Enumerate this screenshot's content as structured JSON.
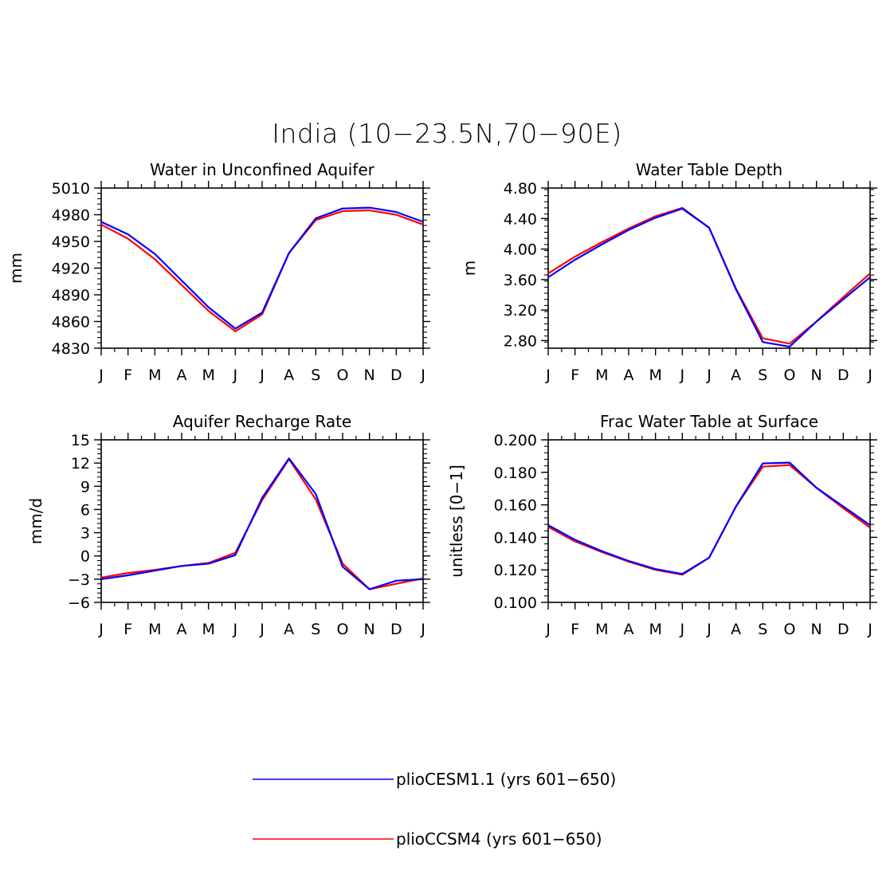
{
  "figure": {
    "title": "India (10−23.5N,70−90E)"
  },
  "legend": {
    "items": [
      {
        "label": "plioCESM1.1 (yrs 601−650)",
        "color": "#0000ff"
      },
      {
        "label": "plioCCSM4 (yrs 601−650)",
        "color": "#ff0000"
      }
    ]
  },
  "chart_data": [
    {
      "type": "line",
      "title": "Water in Unconfined Aquifer",
      "ylabel": "mm",
      "xlabel": "",
      "categories": [
        "J",
        "F",
        "M",
        "A",
        "M",
        "J",
        "J",
        "A",
        "S",
        "O",
        "N",
        "D",
        "J"
      ],
      "ylim": [
        4830,
        5010
      ],
      "yticks": [
        4830,
        4860,
        4890,
        4920,
        4950,
        4980,
        5010
      ],
      "ytick_labels": [
        "4830",
        "4860",
        "4890",
        "4920",
        "4950",
        "4980",
        "5010"
      ],
      "series": [
        {
          "name": "plioCESM1.1 (yrs 601−650)",
          "color": "#0000ff",
          "values": [
            4972,
            4958,
            4936,
            4906,
            4876,
            4852,
            4870,
            4937,
            4976,
            4987,
            4988,
            4983,
            4972
          ]
        },
        {
          "name": "plioCCSM4 (yrs 601−650)",
          "color": "#ff0000",
          "values": [
            4969,
            4953,
            4930,
            4901,
            4872,
            4849,
            4868,
            4937,
            4974,
            4984,
            4985,
            4980,
            4969
          ]
        }
      ]
    },
    {
      "type": "line",
      "title": "Water Table Depth",
      "ylabel": "m",
      "xlabel": "",
      "categories": [
        "J",
        "F",
        "M",
        "A",
        "M",
        "J",
        "J",
        "A",
        "S",
        "O",
        "N",
        "D",
        "J"
      ],
      "ylim": [
        2.7,
        4.8
      ],
      "yticks": [
        2.8,
        3.2,
        3.6,
        4.0,
        4.4,
        4.8
      ],
      "ytick_labels": [
        "2.80",
        "3.20",
        "3.60",
        "4.00",
        "4.40",
        "4.80"
      ],
      "series": [
        {
          "name": "plioCESM1.1 (yrs 601−650)",
          "color": "#0000ff",
          "values": [
            3.63,
            3.86,
            4.06,
            4.25,
            4.41,
            4.53,
            4.28,
            3.47,
            2.78,
            2.72,
            3.05,
            3.34,
            3.63
          ]
        },
        {
          "name": "plioCCSM4 (yrs 601−650)",
          "color": "#ff0000",
          "values": [
            3.68,
            3.9,
            4.09,
            4.27,
            4.43,
            4.54,
            4.28,
            3.48,
            2.83,
            2.76,
            3.05,
            3.37,
            3.68
          ]
        }
      ]
    },
    {
      "type": "line",
      "title": "Aquifer Recharge Rate",
      "ylabel": "mm/d",
      "xlabel": "",
      "categories": [
        "J",
        "F",
        "M",
        "A",
        "M",
        "J",
        "J",
        "A",
        "S",
        "O",
        "N",
        "D",
        "J"
      ],
      "ylim": [
        -6,
        15
      ],
      "yticks": [
        -6,
        -3,
        0,
        3,
        6,
        9,
        12,
        15
      ],
      "ytick_labels": [
        "−6",
        "−3",
        "0",
        "3",
        "6",
        "9",
        "12",
        "15"
      ],
      "series": [
        {
          "name": "plioCESM1.1 (yrs 601−650)",
          "color": "#0000ff",
          "values": [
            -3.0,
            -2.5,
            -1.9,
            -1.3,
            -1.0,
            0.1,
            7.5,
            12.6,
            8.0,
            -1.4,
            -4.3,
            -3.2,
            -3.0
          ]
        },
        {
          "name": "plioCCSM4 (yrs 601−650)",
          "color": "#ff0000",
          "values": [
            -2.8,
            -2.2,
            -1.8,
            -1.3,
            -0.9,
            0.4,
            7.2,
            12.5,
            7.3,
            -1.0,
            -4.3,
            -3.6,
            -2.9
          ]
        }
      ]
    },
    {
      "type": "line",
      "title": "Frac Water Table at Surface",
      "ylabel": "unitless [0−1]",
      "xlabel": "",
      "categories": [
        "J",
        "F",
        "M",
        "A",
        "M",
        "J",
        "J",
        "A",
        "S",
        "O",
        "N",
        "D",
        "J"
      ],
      "ylim": [
        0.1,
        0.2
      ],
      "yticks": [
        0.1,
        0.12,
        0.14,
        0.16,
        0.18,
        0.2
      ],
      "ytick_labels": [
        "0.100",
        "0.120",
        "0.140",
        "0.160",
        "0.180",
        "0.200"
      ],
      "series": [
        {
          "name": "plioCESM1.1 (yrs 601−650)",
          "color": "#0000ff",
          "values": [
            0.1475,
            0.1385,
            0.1315,
            0.1255,
            0.1205,
            0.1175,
            0.1275,
            0.159,
            0.1855,
            0.186,
            0.1705,
            0.159,
            0.1475
          ]
        },
        {
          "name": "plioCCSM4 (yrs 601−650)",
          "color": "#ff0000",
          "values": [
            0.1465,
            0.1375,
            0.131,
            0.125,
            0.12,
            0.117,
            0.1275,
            0.159,
            0.1835,
            0.1845,
            0.1705,
            0.158,
            0.146
          ]
        }
      ]
    }
  ]
}
